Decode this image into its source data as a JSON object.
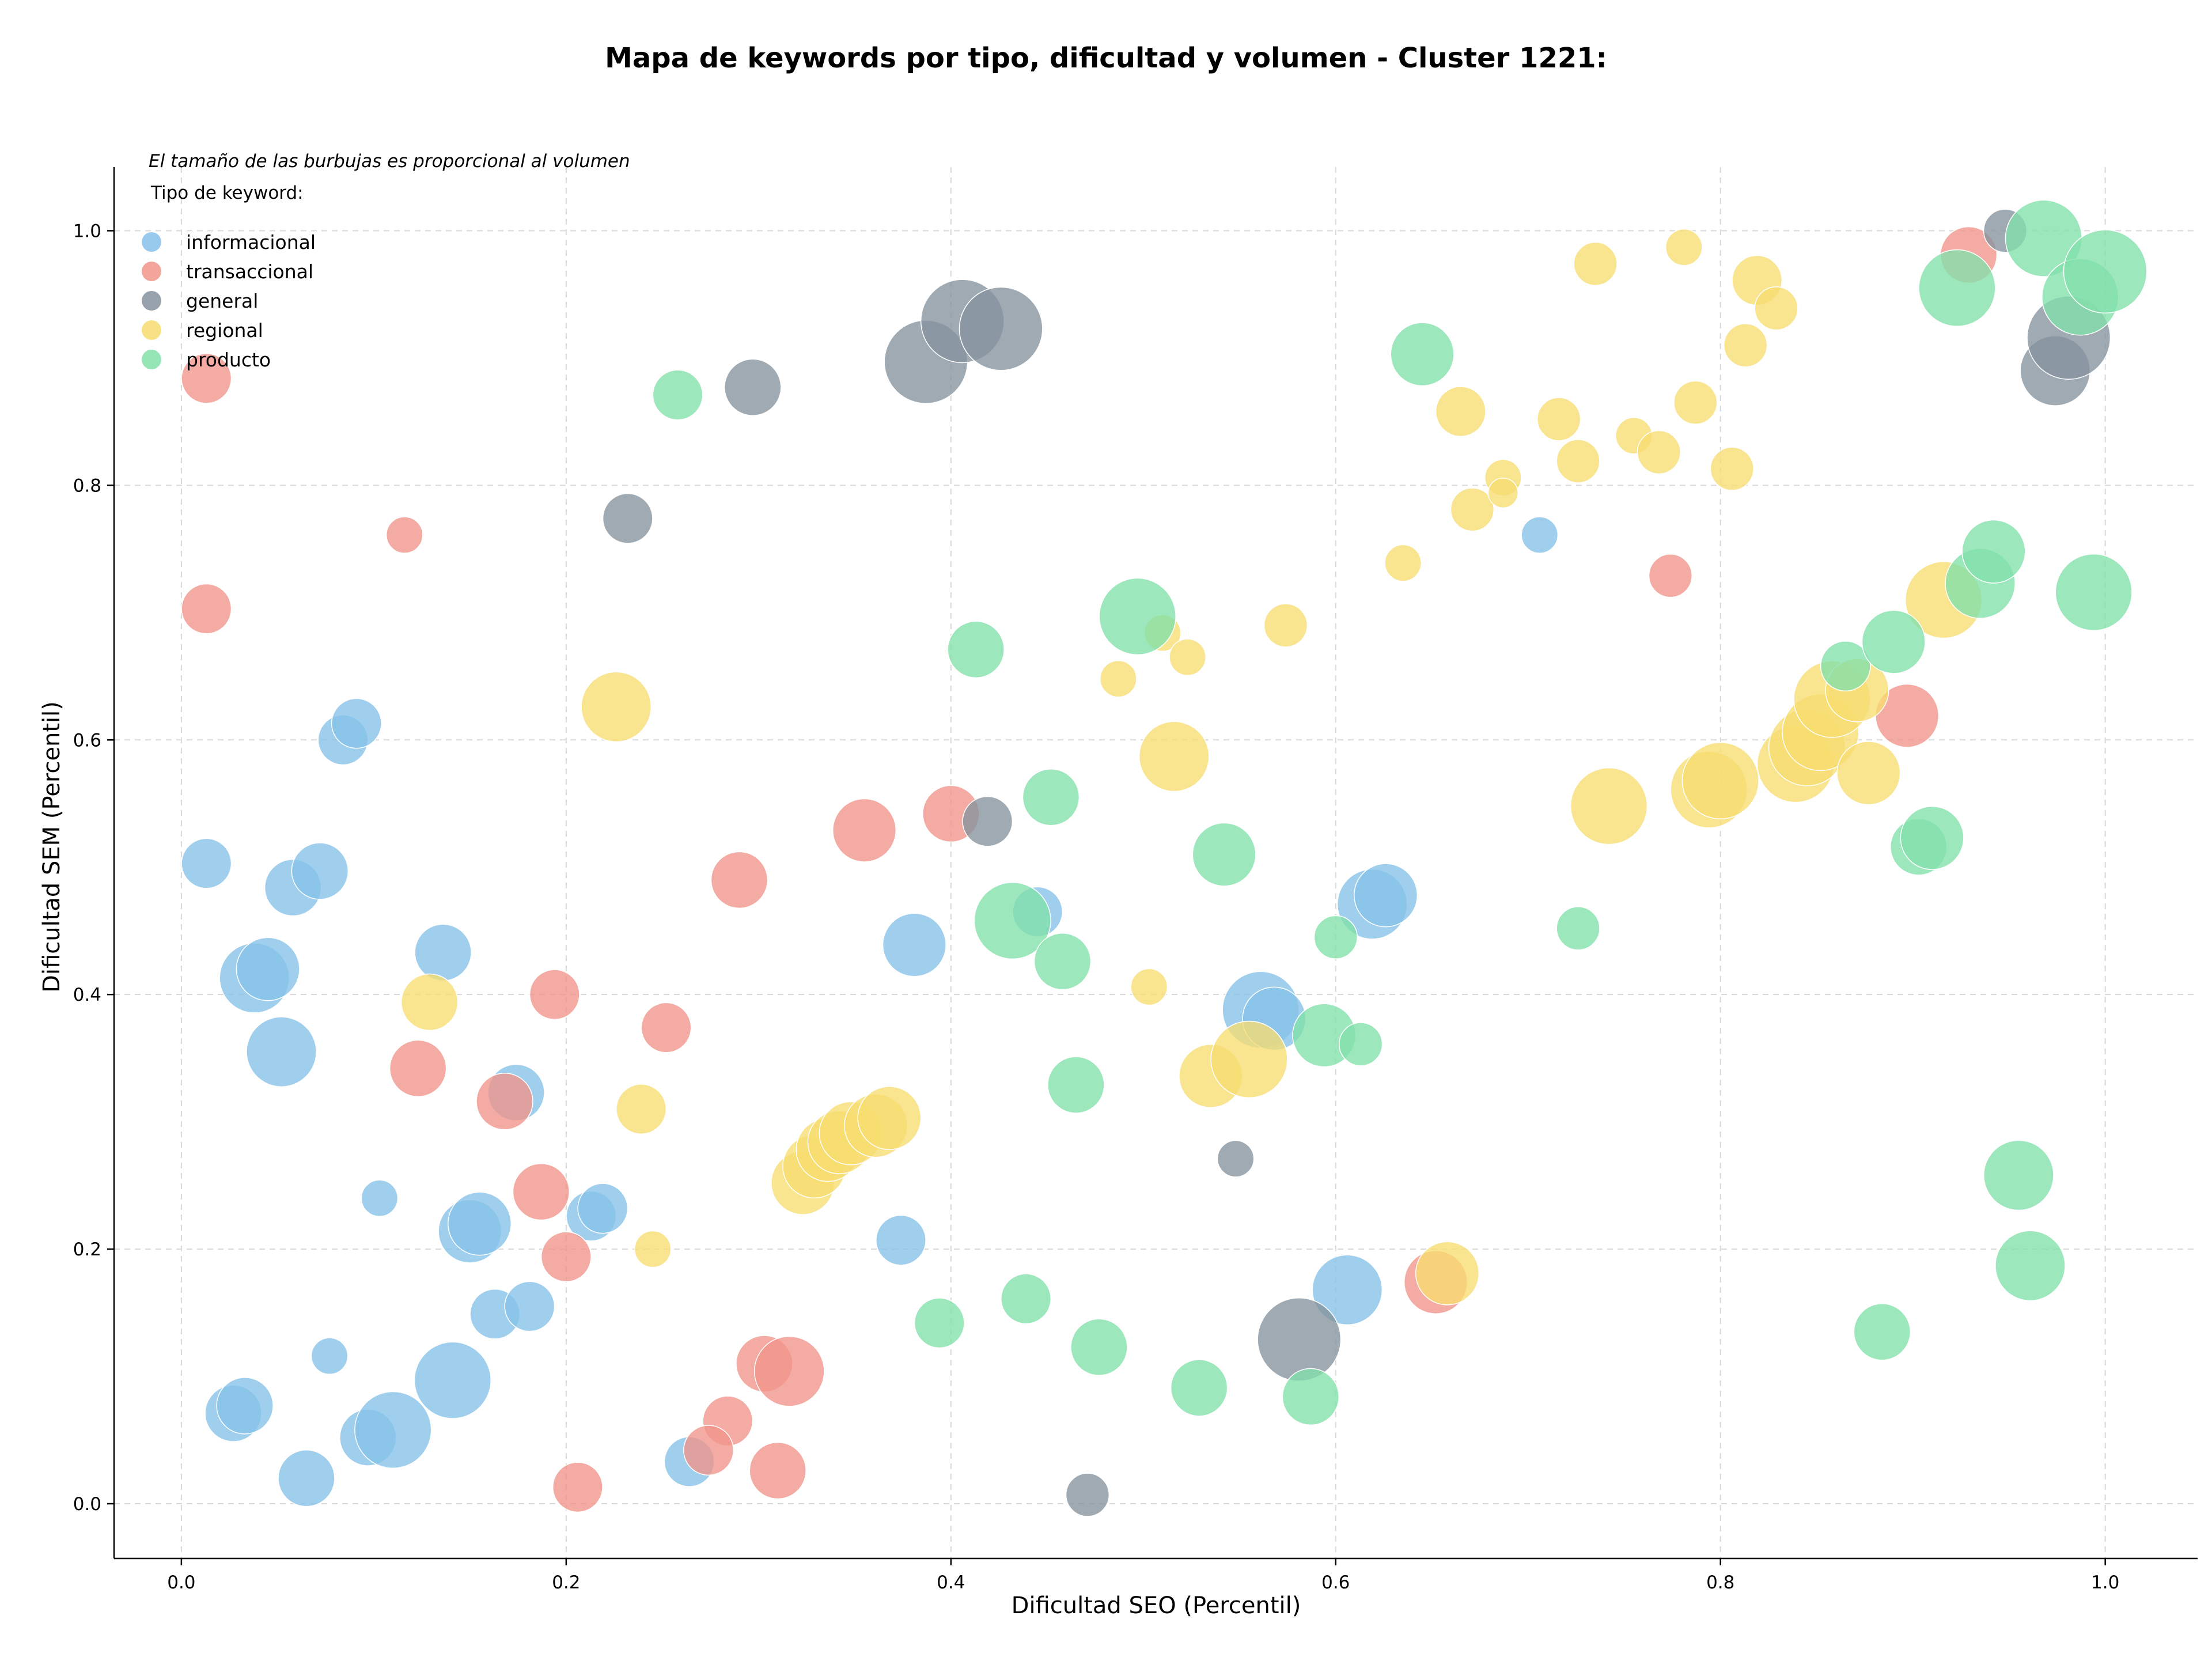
{
  "chart_data": {
    "type": "scatter",
    "title": "Mapa de keywords por tipo, dificultad y volumen - Cluster 1221:",
    "xlabel": "Dificultad SEO (Percentil)",
    "ylabel": "Dificultad SEM (Percentil)",
    "xlim": [
      -0.035,
      1.048
    ],
    "ylim": [
      -0.043,
      1.05
    ],
    "xticks": [
      "0.0",
      "0.2",
      "0.4",
      "0.6",
      "0.8",
      "1.0"
    ],
    "yticks": [
      "0.0",
      "0.2",
      "0.4",
      "0.6",
      "0.8",
      "1.0"
    ],
    "grid": true,
    "note": "El tamaño de las burbujas es proporcional al volumen",
    "legend_title": "Tipo de keyword:",
    "legend_position": "top-left",
    "series": [
      {
        "name": "informacional",
        "color": "#85c1e9",
        "points": [
          {
            "x": 0.013,
            "y": 0.503,
            "size": 0.4
          },
          {
            "x": 0.038,
            "y": 0.413,
            "size": 0.7
          },
          {
            "x": 0.045,
            "y": 0.42,
            "size": 0.6
          },
          {
            "x": 0.052,
            "y": 0.355,
            "size": 0.7
          },
          {
            "x": 0.058,
            "y": 0.484,
            "size": 0.5
          },
          {
            "x": 0.072,
            "y": 0.497,
            "size": 0.5
          },
          {
            "x": 0.084,
            "y": 0.6,
            "size": 0.4
          },
          {
            "x": 0.091,
            "y": 0.613,
            "size": 0.4
          },
          {
            "x": 0.136,
            "y": 0.433,
            "size": 0.5
          },
          {
            "x": 0.103,
            "y": 0.24,
            "size": 0.2
          },
          {
            "x": 0.15,
            "y": 0.214,
            "size": 0.6
          },
          {
            "x": 0.155,
            "y": 0.22,
            "size": 0.6
          },
          {
            "x": 0.174,
            "y": 0.323,
            "size": 0.5
          },
          {
            "x": 0.213,
            "y": 0.226,
            "size": 0.4
          },
          {
            "x": 0.219,
            "y": 0.232,
            "size": 0.4
          },
          {
            "x": 0.077,
            "y": 0.116,
            "size": 0.2
          },
          {
            "x": 0.163,
            "y": 0.149,
            "size": 0.4
          },
          {
            "x": 0.181,
            "y": 0.155,
            "size": 0.4
          },
          {
            "x": 0.027,
            "y": 0.071,
            "size": 0.5
          },
          {
            "x": 0.033,
            "y": 0.077,
            "size": 0.5
          },
          {
            "x": 0.141,
            "y": 0.097,
            "size": 0.8
          },
          {
            "x": 0.097,
            "y": 0.052,
            "size": 0.5
          },
          {
            "x": 0.11,
            "y": 0.058,
            "size": 0.8
          },
          {
            "x": 0.065,
            "y": 0.02,
            "size": 0.5
          },
          {
            "x": 0.264,
            "y": 0.033,
            "size": 0.4
          },
          {
            "x": 0.374,
            "y": 0.207,
            "size": 0.4
          },
          {
            "x": 0.381,
            "y": 0.439,
            "size": 0.6
          },
          {
            "x": 0.445,
            "y": 0.465,
            "size": 0.4
          },
          {
            "x": 0.561,
            "y": 0.388,
            "size": 0.8
          },
          {
            "x": 0.568,
            "y": 0.381,
            "size": 0.6
          },
          {
            "x": 0.606,
            "y": 0.168,
            "size": 0.7
          },
          {
            "x": 0.619,
            "y": 0.471,
            "size": 0.7
          },
          {
            "x": 0.626,
            "y": 0.478,
            "size": 0.6
          },
          {
            "x": 0.706,
            "y": 0.761,
            "size": 0.2
          }
        ]
      },
      {
        "name": "transaccional",
        "color": "#f1948a",
        "points": [
          {
            "x": 0.013,
            "y": 0.884,
            "size": 0.4
          },
          {
            "x": 0.013,
            "y": 0.703,
            "size": 0.4
          },
          {
            "x": 0.116,
            "y": 0.761,
            "size": 0.2
          },
          {
            "x": 0.123,
            "y": 0.342,
            "size": 0.5
          },
          {
            "x": 0.168,
            "y": 0.316,
            "size": 0.5
          },
          {
            "x": 0.187,
            "y": 0.245,
            "size": 0.5
          },
          {
            "x": 0.194,
            "y": 0.4,
            "size": 0.4
          },
          {
            "x": 0.2,
            "y": 0.194,
            "size": 0.4
          },
          {
            "x": 0.206,
            "y": 0.013,
            "size": 0.4
          },
          {
            "x": 0.252,
            "y": 0.374,
            "size": 0.4
          },
          {
            "x": 0.29,
            "y": 0.49,
            "size": 0.5
          },
          {
            "x": 0.284,
            "y": 0.065,
            "size": 0.4
          },
          {
            "x": 0.274,
            "y": 0.042,
            "size": 0.4
          },
          {
            "x": 0.303,
            "y": 0.11,
            "size": 0.5
          },
          {
            "x": 0.316,
            "y": 0.104,
            "size": 0.7
          },
          {
            "x": 0.31,
            "y": 0.026,
            "size": 0.5
          },
          {
            "x": 0.355,
            "y": 0.529,
            "size": 0.6
          },
          {
            "x": 0.4,
            "y": 0.542,
            "size": 0.5
          },
          {
            "x": 0.652,
            "y": 0.174,
            "size": 0.6
          },
          {
            "x": 0.774,
            "y": 0.729,
            "size": 0.3
          },
          {
            "x": 0.897,
            "y": 0.619,
            "size": 0.6
          },
          {
            "x": 0.929,
            "y": 0.981,
            "size": 0.5
          }
        ]
      },
      {
        "name": "general",
        "color": "#85929e",
        "points": [
          {
            "x": 0.232,
            "y": 0.774,
            "size": 0.4
          },
          {
            "x": 0.297,
            "y": 0.877,
            "size": 0.5
          },
          {
            "x": 0.387,
            "y": 0.897,
            "size": 0.9
          },
          {
            "x": 0.406,
            "y": 0.929,
            "size": 0.9
          },
          {
            "x": 0.426,
            "y": 0.923,
            "size": 0.9
          },
          {
            "x": 0.419,
            "y": 0.536,
            "size": 0.4
          },
          {
            "x": 0.548,
            "y": 0.271,
            "size": 0.2
          },
          {
            "x": 0.581,
            "y": 0.129,
            "size": 0.9
          },
          {
            "x": 0.471,
            "y": 0.007,
            "size": 0.3
          },
          {
            "x": 0.948,
            "y": 1.0,
            "size": 0.3
          },
          {
            "x": 0.974,
            "y": 0.89,
            "size": 0.7
          },
          {
            "x": 0.981,
            "y": 0.916,
            "size": 0.9
          }
        ]
      },
      {
        "name": "regional",
        "color": "#f7dc6f",
        "points": [
          {
            "x": 0.226,
            "y": 0.626,
            "size": 0.7
          },
          {
            "x": 0.129,
            "y": 0.394,
            "size": 0.5
          },
          {
            "x": 0.239,
            "y": 0.31,
            "size": 0.4
          },
          {
            "x": 0.245,
            "y": 0.2,
            "size": 0.2
          },
          {
            "x": 0.323,
            "y": 0.252,
            "size": 0.6
          },
          {
            "x": 0.329,
            "y": 0.265,
            "size": 0.6
          },
          {
            "x": 0.336,
            "y": 0.278,
            "size": 0.6
          },
          {
            "x": 0.342,
            "y": 0.284,
            "size": 0.6
          },
          {
            "x": 0.348,
            "y": 0.291,
            "size": 0.6
          },
          {
            "x": 0.361,
            "y": 0.297,
            "size": 0.6
          },
          {
            "x": 0.368,
            "y": 0.303,
            "size": 0.6
          },
          {
            "x": 0.503,
            "y": 0.406,
            "size": 0.2
          },
          {
            "x": 0.487,
            "y": 0.648,
            "size": 0.2
          },
          {
            "x": 0.51,
            "y": 0.684,
            "size": 0.2
          },
          {
            "x": 0.523,
            "y": 0.665,
            "size": 0.2
          },
          {
            "x": 0.516,
            "y": 0.587,
            "size": 0.7
          },
          {
            "x": 0.535,
            "y": 0.336,
            "size": 0.6
          },
          {
            "x": 0.555,
            "y": 0.349,
            "size": 0.8
          },
          {
            "x": 0.574,
            "y": 0.69,
            "size": 0.3
          },
          {
            "x": 0.635,
            "y": 0.739,
            "size": 0.2
          },
          {
            "x": 0.658,
            "y": 0.181,
            "size": 0.6
          },
          {
            "x": 0.665,
            "y": 0.858,
            "size": 0.4
          },
          {
            "x": 0.671,
            "y": 0.781,
            "size": 0.3
          },
          {
            "x": 0.687,
            "y": 0.806,
            "size": 0.2
          },
          {
            "x": 0.687,
            "y": 0.794,
            "size": 0.1
          },
          {
            "x": 0.716,
            "y": 0.852,
            "size": 0.3
          },
          {
            "x": 0.726,
            "y": 0.819,
            "size": 0.3
          },
          {
            "x": 0.735,
            "y": 0.974,
            "size": 0.3
          },
          {
            "x": 0.742,
            "y": 0.548,
            "size": 0.8
          },
          {
            "x": 0.755,
            "y": 0.839,
            "size": 0.2
          },
          {
            "x": 0.768,
            "y": 0.826,
            "size": 0.3
          },
          {
            "x": 0.781,
            "y": 0.987,
            "size": 0.2
          },
          {
            "x": 0.787,
            "y": 0.865,
            "size": 0.3
          },
          {
            "x": 0.794,
            "y": 0.561,
            "size": 0.8
          },
          {
            "x": 0.8,
            "y": 0.568,
            "size": 0.8
          },
          {
            "x": 0.806,
            "y": 0.813,
            "size": 0.3
          },
          {
            "x": 0.813,
            "y": 0.91,
            "size": 0.3
          },
          {
            "x": 0.819,
            "y": 0.961,
            "size": 0.4
          },
          {
            "x": 0.829,
            "y": 0.939,
            "size": 0.3
          },
          {
            "x": 0.839,
            "y": 0.581,
            "size": 0.8
          },
          {
            "x": 0.845,
            "y": 0.594,
            "size": 0.8
          },
          {
            "x": 0.852,
            "y": 0.606,
            "size": 0.8
          },
          {
            "x": 0.858,
            "y": 0.632,
            "size": 0.8
          },
          {
            "x": 0.871,
            "y": 0.639,
            "size": 0.6
          },
          {
            "x": 0.877,
            "y": 0.574,
            "size": 0.6
          },
          {
            "x": 0.916,
            "y": 0.71,
            "size": 0.8
          }
        ]
      },
      {
        "name": "producto",
        "color": "#82e0aa",
        "points": [
          {
            "x": 0.258,
            "y": 0.871,
            "size": 0.4
          },
          {
            "x": 0.394,
            "y": 0.142,
            "size": 0.4
          },
          {
            "x": 0.413,
            "y": 0.671,
            "size": 0.5
          },
          {
            "x": 0.432,
            "y": 0.458,
            "size": 0.8
          },
          {
            "x": 0.439,
            "y": 0.161,
            "size": 0.4
          },
          {
            "x": 0.452,
            "y": 0.555,
            "size": 0.5
          },
          {
            "x": 0.458,
            "y": 0.426,
            "size": 0.5
          },
          {
            "x": 0.465,
            "y": 0.329,
            "size": 0.5
          },
          {
            "x": 0.477,
            "y": 0.123,
            "size": 0.5
          },
          {
            "x": 0.497,
            "y": 0.697,
            "size": 0.8
          },
          {
            "x": 0.529,
            "y": 0.091,
            "size": 0.5
          },
          {
            "x": 0.542,
            "y": 0.51,
            "size": 0.6
          },
          {
            "x": 0.587,
            "y": 0.084,
            "size": 0.5
          },
          {
            "x": 0.594,
            "y": 0.368,
            "size": 0.6
          },
          {
            "x": 0.6,
            "y": 0.445,
            "size": 0.3
          },
          {
            "x": 0.613,
            "y": 0.361,
            "size": 0.3
          },
          {
            "x": 0.645,
            "y": 0.903,
            "size": 0.6
          },
          {
            "x": 0.726,
            "y": 0.452,
            "size": 0.3
          },
          {
            "x": 0.865,
            "y": 0.658,
            "size": 0.4
          },
          {
            "x": 0.89,
            "y": 0.677,
            "size": 0.6
          },
          {
            "x": 0.884,
            "y": 0.135,
            "size": 0.5
          },
          {
            "x": 0.903,
            "y": 0.516,
            "size": 0.5
          },
          {
            "x": 0.91,
            "y": 0.523,
            "size": 0.6
          },
          {
            "x": 0.923,
            "y": 0.955,
            "size": 0.8
          },
          {
            "x": 0.935,
            "y": 0.723,
            "size": 0.7
          },
          {
            "x": 0.942,
            "y": 0.748,
            "size": 0.6
          },
          {
            "x": 0.955,
            "y": 0.258,
            "size": 0.7
          },
          {
            "x": 0.961,
            "y": 0.187,
            "size": 0.7
          },
          {
            "x": 0.968,
            "y": 0.994,
            "size": 0.8
          },
          {
            "x": 0.987,
            "y": 0.948,
            "size": 0.8
          },
          {
            "x": 0.994,
            "y": 0.716,
            "size": 0.8
          },
          {
            "x": 1.0,
            "y": 0.968,
            "size": 0.9
          }
        ]
      }
    ]
  }
}
